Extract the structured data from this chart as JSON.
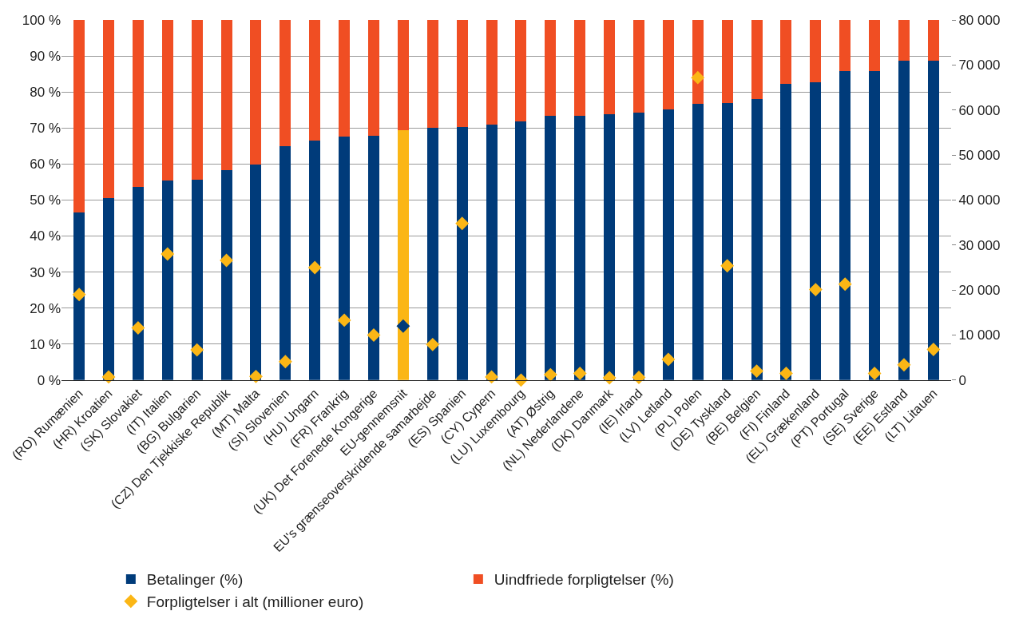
{
  "chart_data": {
    "type": "bar",
    "stacked": true,
    "categories": [
      "(RO) Rumænien",
      "(HR) Kroatien",
      "(SK) Slovakiet",
      "(IT) Italien",
      "(BG) Bulgarien",
      "(CZ) Den Tjekkiske Republik",
      "(MT) Malta",
      "(SI) Slovenien",
      "(HU) Ungarn",
      "(FR) Frankrig",
      "(UK) Det Forenede Kongerige",
      "EU-gennemsnit",
      "EU's grænseoverskridende samarbejde",
      "(ES) Spanien",
      "(CY) Cypern",
      "(LU) Luxembourg",
      "(AT) Østrig",
      "(NL) Nederlandene",
      "(DK) Danmark",
      "(IE) Irland",
      "(LV) Letland",
      "(PL) Polen",
      "(DE) Tyskland",
      "(BE) Belgien",
      "(FI) Finland",
      "(EL) Grækenland",
      "(PT) Portugal",
      "(SE) Sverige",
      "(EE) Estland",
      "(LT) Litauen"
    ],
    "series": [
      {
        "name": "Betalinger (%)",
        "color": "#003b7a",
        "colors": [
          "#003b7a",
          "#003b7a",
          "#003b7a",
          "#003b7a",
          "#003b7a",
          "#003b7a",
          "#003b7a",
          "#003b7a",
          "#003b7a",
          "#003b7a",
          "#003b7a",
          "#fbb615",
          "#003b7a",
          "#003b7a",
          "#003b7a",
          "#003b7a",
          "#003b7a",
          "#003b7a",
          "#003b7a",
          "#003b7a",
          "#003b7a",
          "#003b7a",
          "#003b7a",
          "#003b7a",
          "#003b7a",
          "#003b7a",
          "#003b7a",
          "#003b7a",
          "#003b7a",
          "#003b7a"
        ],
        "values": [
          46.5,
          50.5,
          53.7,
          55.4,
          55.7,
          58.2,
          59.9,
          65,
          66.5,
          67.6,
          67.8,
          69.5,
          70,
          70.3,
          71,
          71.8,
          73.3,
          73.4,
          73.8,
          74.2,
          75.2,
          76.7,
          76.9,
          78,
          82.3,
          82.6,
          85.7,
          85.7,
          88.8,
          88.8
        ]
      },
      {
        "name": "Uindfriede forpligtelser (%)",
        "color": "#f04e23",
        "values": [
          53.5,
          49.5,
          46.3,
          44.6,
          44.3,
          41.8,
          40.1,
          35,
          33.5,
          32.4,
          32.2,
          30.5,
          30,
          29.7,
          29,
          28.2,
          26.7,
          26.6,
          26.2,
          25.8,
          24.8,
          23.3,
          23.1,
          22,
          17.7,
          17.4,
          14.3,
          14.3,
          11.2,
          11.2
        ]
      },
      {
        "name": "Forpligtelser i alt (millioner euro)",
        "type": "scatter",
        "axis": "y2",
        "marker": "diamond",
        "color": "#fbb615",
        "colors": [
          "#fbb615",
          "#fbb615",
          "#fbb615",
          "#fbb615",
          "#fbb615",
          "#fbb615",
          "#fbb615",
          "#fbb615",
          "#fbb615",
          "#fbb615",
          "#fbb615",
          "#003b7a",
          "#fbb615",
          "#fbb615",
          "#fbb615",
          "#fbb615",
          "#fbb615",
          "#fbb615",
          "#fbb615",
          "#fbb615",
          "#fbb615",
          "#fbb615",
          "#fbb615",
          "#fbb615",
          "#fbb615",
          "#fbb615",
          "#fbb615",
          "#fbb615",
          "#fbb615",
          "#fbb615"
        ],
        "values": [
          19000,
          700,
          11600,
          28000,
          6700,
          26600,
          800,
          4100,
          25000,
          13300,
          10000,
          12000,
          7900,
          34800,
          700,
          0,
          1200,
          1500,
          500,
          600,
          4600,
          67200,
          25400,
          2000,
          1500,
          20100,
          21300,
          1500,
          3400,
          6800
        ]
      }
    ],
    "ylim": [
      0,
      100
    ],
    "yticks": [
      {
        "value": 0,
        "label": "0 %"
      },
      {
        "value": 10,
        "label": "10 %"
      },
      {
        "value": 20,
        "label": "20 %"
      },
      {
        "value": 30,
        "label": "30 %"
      },
      {
        "value": 40,
        "label": "40 %"
      },
      {
        "value": 50,
        "label": "50 %"
      },
      {
        "value": 60,
        "label": "60 %"
      },
      {
        "value": 70,
        "label": "70 %"
      },
      {
        "value": 80,
        "label": "80 %"
      },
      {
        "value": 90,
        "label": "90 %"
      },
      {
        "value": 100,
        "label": "100 %"
      }
    ],
    "y2lim": [
      0,
      80000
    ],
    "y2ticks": [
      0,
      {
        "value": 10000,
        "label": "10 000"
      },
      {
        "value": 20000,
        "label": "20 000"
      },
      {
        "value": 30000,
        "label": "30 000"
      },
      {
        "value": 40000,
        "label": "40 000"
      },
      {
        "value": 50000,
        "label": "50 000"
      },
      {
        "value": 60000,
        "label": "60 000"
      },
      {
        "value": 70000,
        "label": "70 000"
      },
      {
        "value": 80000,
        "label": "80 000"
      }
    ],
    "grid": "y",
    "legend": "bottom"
  }
}
